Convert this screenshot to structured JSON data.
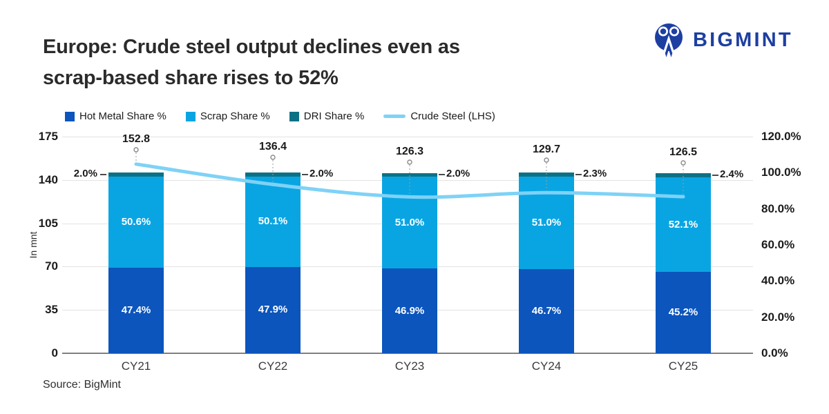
{
  "header": {
    "title_line1": "Europe: Crude steel output declines even as",
    "title_line2": "scrap-based share rises to 52%",
    "logo_text": "BIGMINT"
  },
  "legend": {
    "items": [
      {
        "label": "Hot Metal Share %",
        "swatch": "square",
        "color": "#0b55bd"
      },
      {
        "label": "Scrap Share %",
        "swatch": "square",
        "color": "#09a5e3"
      },
      {
        "label": "DRI Share %",
        "swatch": "square",
        "color": "#0d7185"
      },
      {
        "label": "Crude Steel (LHS)",
        "swatch": "line",
        "color": "#7ed2f6"
      }
    ]
  },
  "chart_data": {
    "type": "bar",
    "subtype": "stacked-percent-bars-with-line-overlay",
    "categories": [
      "CY21",
      "CY22",
      "CY23",
      "CY24",
      "CY25"
    ],
    "series": [
      {
        "name": "Hot Metal Share %",
        "type": "bar",
        "axis": "right",
        "color": "#0b55bd",
        "values": [
          47.4,
          47.9,
          46.9,
          46.7,
          45.2
        ]
      },
      {
        "name": "Scrap Share %",
        "type": "bar",
        "axis": "right",
        "color": "#09a5e3",
        "values": [
          50.6,
          50.1,
          51.0,
          51.0,
          52.1
        ]
      },
      {
        "name": "DRI Share %",
        "type": "bar",
        "axis": "right",
        "color": "#0d7185",
        "values": [
          2.0,
          2.0,
          2.0,
          2.3,
          2.4
        ]
      },
      {
        "name": "Crude Steel (LHS)",
        "type": "line",
        "axis": "left",
        "color": "#7ed2f6",
        "values": [
          152.8,
          136.4,
          126.3,
          129.7,
          126.5
        ]
      }
    ],
    "left_axis": {
      "title": "In mnt",
      "ticks": [
        0,
        35,
        70,
        105,
        140,
        175
      ],
      "min": 0,
      "max": 175
    },
    "right_axis": {
      "tick_labels": [
        "0.0%",
        "20.0%",
        "40.0%",
        "60.0%",
        "80.0%",
        "100.0%",
        "120.0%"
      ],
      "min": 0,
      "max": 120
    },
    "grid": "horizontal",
    "legend_position": "top"
  },
  "footer": {
    "source": "Source: BigMint"
  }
}
